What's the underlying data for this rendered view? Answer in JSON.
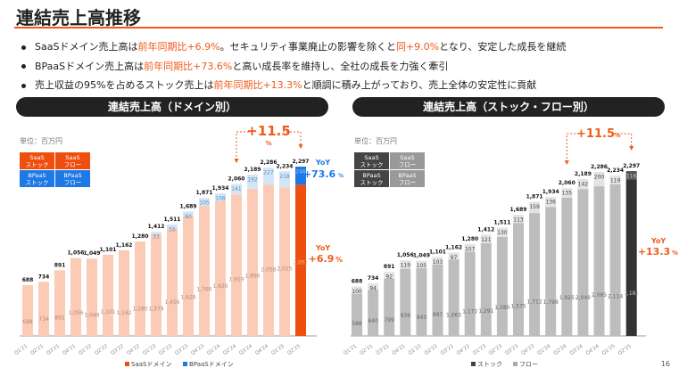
{
  "header": {
    "title": "連結売上高推移"
  },
  "bullets": [
    {
      "pre": "SaaSドメイン売上高は",
      "hl1": "前年同期比+6.9%",
      "mid": "。セキュリティ事業廃止の影響を除くと",
      "hl2": "同+9.0%",
      "post": "となり、安定した成長を継続"
    },
    {
      "pre": "BPaaSドメイン売上高は",
      "hl1": "前年同期比+73.6%",
      "mid": "と高い成長率を維持し、全社の成長を力強く牽引",
      "hl2": "",
      "post": ""
    },
    {
      "pre": "売上収益の95%を占めるストック売上は",
      "hl1": "前年同期比+13.3%",
      "mid": "と順調に積み上がっており、売上全体の安定性に貢献",
      "hl2": "",
      "post": ""
    }
  ],
  "page_number": "16",
  "colors": {
    "accent": "#F05A1A",
    "blue": "#1E78E6"
  },
  "chart_data": [
    {
      "type": "bar",
      "stacked": true,
      "title": "連結売上高（ドメイン別）",
      "unit": "単位：百万円",
      "categories": [
        "Q1'21",
        "Q2'21",
        "Q3'21",
        "Q4'21",
        "Q1'22",
        "Q2'22",
        "Q3'22",
        "Q4'22",
        "Q1'23",
        "Q2'23",
        "Q3'23",
        "Q4'23",
        "Q1'24",
        "Q2'24",
        "Q3'24",
        "Q4'24",
        "Q1'25",
        "Q2'25"
      ],
      "totals": [
        688,
        734,
        891,
        1056,
        1049,
        1101,
        1162,
        1280,
        1412,
        1511,
        1689,
        1871,
        1934,
        2060,
        2189,
        2286,
        2234,
        2297
      ],
      "series": [
        {
          "name": "SaaSドメイン",
          "values": [
            688,
            734,
            891,
            1056,
            1049,
            1101,
            1162,
            1280,
            1379,
            1456,
            1628,
            1766,
            1826,
            1919,
            1996,
            2058,
            2015,
            2051
          ]
        },
        {
          "name": "BPaaSドメイン",
          "values": [
            0,
            0,
            0,
            0,
            0,
            0,
            0,
            0,
            33,
            55,
            60,
            105,
            108,
            141,
            192,
            227,
            218,
            246
          ]
        }
      ],
      "legend_boxes": [
        [
          "SaaS",
          "ストック"
        ],
        [
          "SaaS",
          "フロー"
        ],
        [
          "BPaaS",
          "ストック"
        ],
        [
          "BPaaS",
          "フロー"
        ]
      ],
      "growth_annotation": "+11.5",
      "growth_unit": "%",
      "yoy": [
        {
          "label": "YoY",
          "value": "+73.6",
          "unit": "%"
        },
        {
          "label": "YoY",
          "value": "+6.9",
          "unit": "%"
        }
      ],
      "ylim": [
        0,
        2400
      ]
    },
    {
      "type": "bar",
      "stacked": true,
      "title": "連結売上高（ストック・フロー別）",
      "unit": "単位：百万円",
      "categories": [
        "Q1'21",
        "Q2'21",
        "Q3'21",
        "Q4'21",
        "Q1'22",
        "Q2'22",
        "Q3'22",
        "Q4'22",
        "Q1'23",
        "Q2'23",
        "Q3'23",
        "Q4'23",
        "Q1'24",
        "Q2'24",
        "Q3'24",
        "Q4'24",
        "Q1'25",
        "Q2'25"
      ],
      "totals": [
        688,
        734,
        891,
        1056,
        1049,
        1101,
        1162,
        1280,
        1412,
        1511,
        1689,
        1871,
        1934,
        2060,
        2189,
        2286,
        2234,
        2297
      ],
      "series": [
        {
          "name": "ストック",
          "values": [
            588,
            640,
            799,
            936,
            943,
            997,
            1065,
            1172,
            1291,
            1380,
            1575,
            1712,
            1798,
            1925,
            2046,
            2085,
            2114,
            2181
          ]
        },
        {
          "name": "フロー",
          "values": [
            100,
            94,
            92,
            119,
            105,
            103,
            97,
            107,
            121,
            130,
            113,
            159,
            136,
            135,
            142,
            200,
            119,
            116
          ]
        }
      ],
      "legend_boxes": [
        [
          "SaaS",
          "ストック"
        ],
        [
          "SaaS",
          "フロー"
        ],
        [
          "BPaaS",
          "ストック"
        ],
        [
          "BPaaS",
          "フロー"
        ]
      ],
      "growth_annotation": "+11.5",
      "growth_unit": "%",
      "yoy": [
        {
          "label": "YoY",
          "value": "+13.3",
          "unit": "%"
        }
      ],
      "ylim": [
        0,
        2400
      ]
    }
  ]
}
